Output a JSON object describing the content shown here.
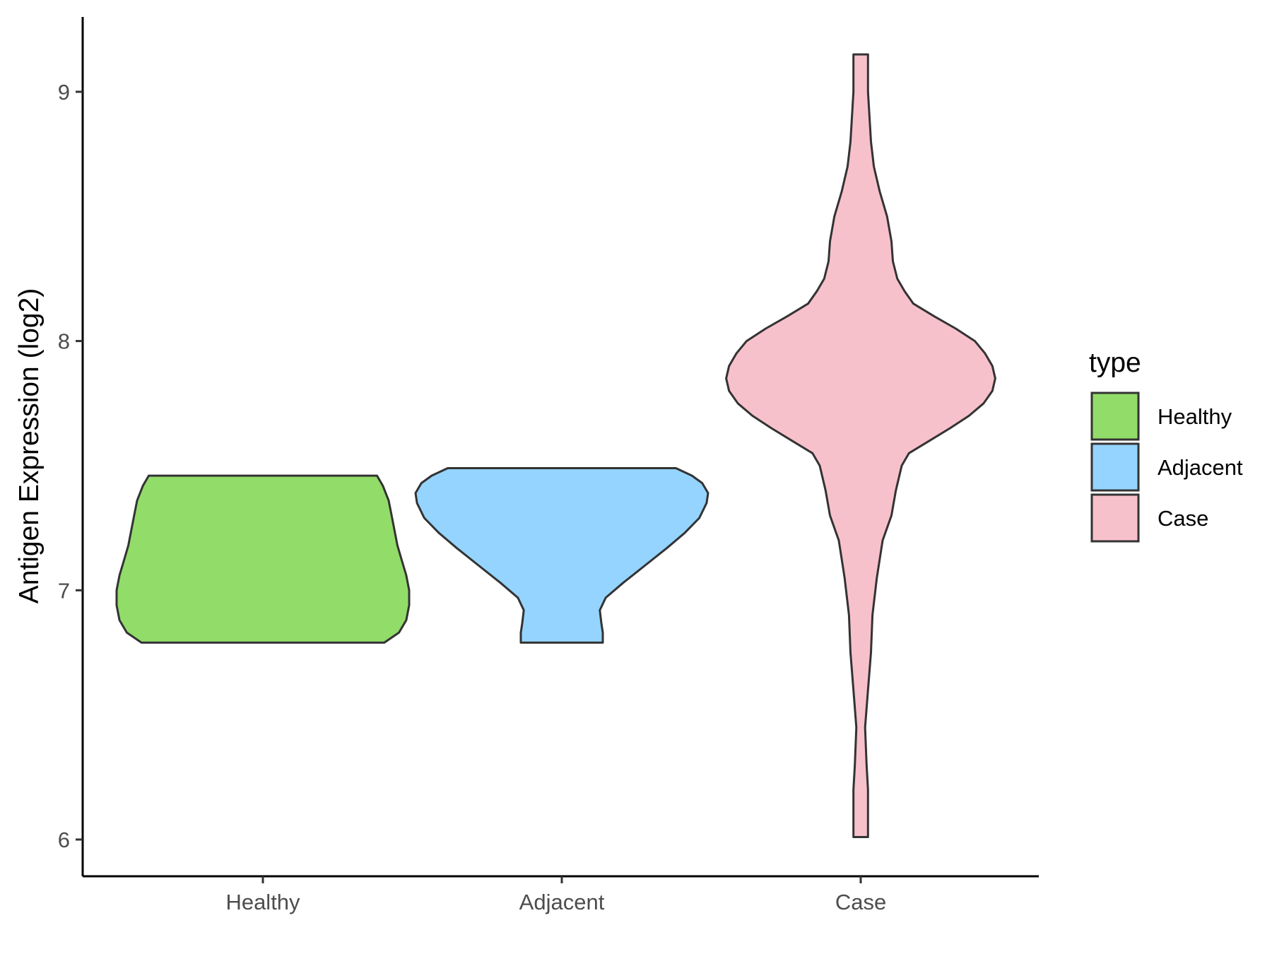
{
  "chart_data": {
    "type": "violin",
    "title": "",
    "xlabel": "",
    "ylabel": "Antigen Expression (log2)",
    "ylim": [
      5.85,
      9.3
    ],
    "yticks": [
      6,
      7,
      8,
      9
    ],
    "categories": [
      "Healthy",
      "Adjacent",
      "Case"
    ],
    "legend": {
      "title": "type",
      "position": "right",
      "entries": [
        {
          "label": "Healthy",
          "color": "#92DC6A"
        },
        {
          "label": "Adjacent",
          "color": "#94D4FF"
        },
        {
          "label": "Case",
          "color": "#F7C1CC"
        }
      ]
    },
    "grid": false,
    "series": [
      {
        "name": "Healthy",
        "color": "#92DC6A",
        "min": 6.79,
        "max": 7.46,
        "density": [
          [
            6.79,
            0.83
          ],
          [
            6.83,
            0.93
          ],
          [
            6.88,
            0.98
          ],
          [
            6.94,
            1.0
          ],
          [
            7.0,
            1.0
          ],
          [
            7.06,
            0.98
          ],
          [
            7.12,
            0.95
          ],
          [
            7.18,
            0.92
          ],
          [
            7.24,
            0.9
          ],
          [
            7.3,
            0.88
          ],
          [
            7.36,
            0.86
          ],
          [
            7.42,
            0.82
          ],
          [
            7.46,
            0.78
          ]
        ]
      },
      {
        "name": "Adjacent",
        "color": "#94D4FF",
        "min": 6.79,
        "max": 7.49,
        "density": [
          [
            6.79,
            0.28
          ],
          [
            6.83,
            0.28
          ],
          [
            6.87,
            0.27
          ],
          [
            6.92,
            0.26
          ],
          [
            6.97,
            0.3
          ],
          [
            7.03,
            0.42
          ],
          [
            7.1,
            0.57
          ],
          [
            7.17,
            0.72
          ],
          [
            7.23,
            0.84
          ],
          [
            7.29,
            0.94
          ],
          [
            7.35,
            0.99
          ],
          [
            7.39,
            1.0
          ],
          [
            7.43,
            0.96
          ],
          [
            7.46,
            0.89
          ],
          [
            7.49,
            0.78
          ]
        ]
      },
      {
        "name": "Case",
        "color": "#F7C1CC",
        "min": 6.01,
        "max": 9.15,
        "density": [
          [
            6.01,
            0.05
          ],
          [
            6.1,
            0.05
          ],
          [
            6.2,
            0.05
          ],
          [
            6.3,
            0.04
          ],
          [
            6.45,
            0.03
          ],
          [
            6.6,
            0.05
          ],
          [
            6.75,
            0.07
          ],
          [
            6.9,
            0.08
          ],
          [
            7.05,
            0.11
          ],
          [
            7.2,
            0.15
          ],
          [
            7.3,
            0.21
          ],
          [
            7.4,
            0.24
          ],
          [
            7.5,
            0.28
          ],
          [
            7.55,
            0.33
          ],
          [
            7.6,
            0.47
          ],
          [
            7.65,
            0.61
          ],
          [
            7.7,
            0.74
          ],
          [
            7.75,
            0.84
          ],
          [
            7.8,
            0.9
          ],
          [
            7.85,
            0.92
          ],
          [
            7.9,
            0.9
          ],
          [
            7.95,
            0.85
          ],
          [
            8.0,
            0.78
          ],
          [
            8.05,
            0.65
          ],
          [
            8.1,
            0.5
          ],
          [
            8.15,
            0.36
          ],
          [
            8.2,
            0.3
          ],
          [
            8.25,
            0.25
          ],
          [
            8.32,
            0.22
          ],
          [
            8.4,
            0.21
          ],
          [
            8.5,
            0.18
          ],
          [
            8.6,
            0.13
          ],
          [
            8.7,
            0.09
          ],
          [
            8.8,
            0.07
          ],
          [
            8.9,
            0.06
          ],
          [
            9.0,
            0.05
          ],
          [
            9.1,
            0.05
          ],
          [
            9.15,
            0.05
          ]
        ]
      }
    ]
  }
}
